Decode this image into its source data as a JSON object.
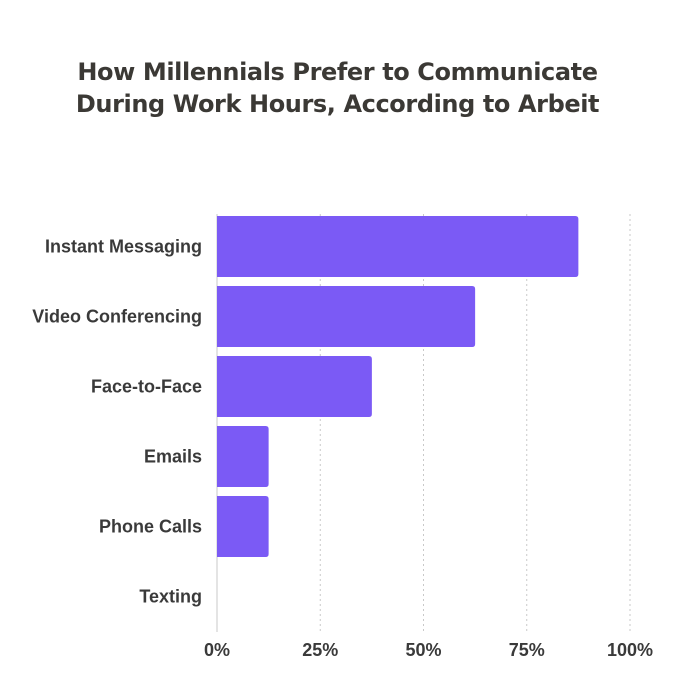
{
  "chart_data": {
    "type": "bar",
    "orientation": "horizontal",
    "title": "How Millennials Prefer to Communicate During Work Hours, According to Arbeit",
    "xlabel": "",
    "ylabel": "",
    "categories": [
      "Instant Messaging",
      "Video Conferencing",
      "Face-to-Face",
      "Emails",
      "Phone Calls",
      "Texting"
    ],
    "values": [
      87.5,
      62.5,
      37.5,
      12.5,
      12.5,
      0
    ],
    "xlim": [
      0,
      100
    ],
    "x_ticks": [
      0,
      25,
      50,
      75,
      100
    ],
    "x_tick_labels": [
      "0%",
      "25%",
      "50%",
      "75%",
      "100%"
    ],
    "grid": "vertical dotted",
    "legend": "none",
    "bar_color": "#7b5af5"
  }
}
